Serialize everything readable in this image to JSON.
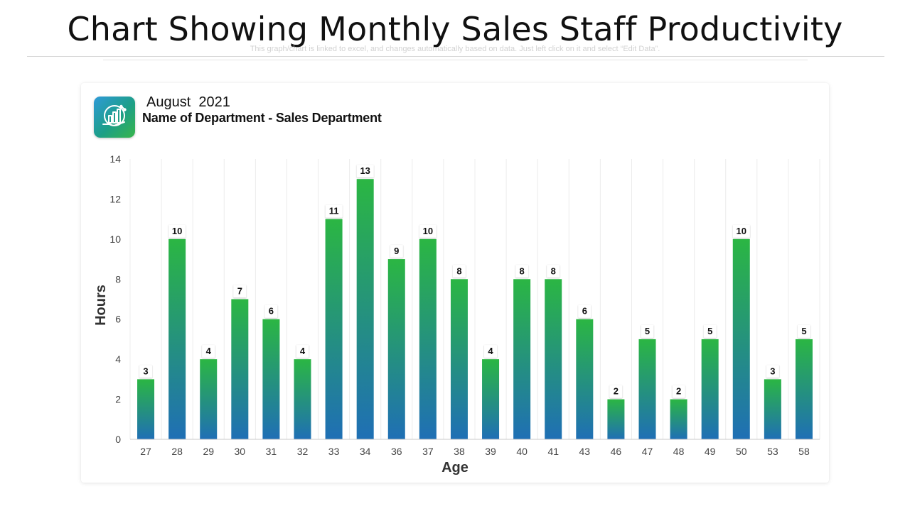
{
  "slide": {
    "title": "Chart Showing Monthly Sales Staff Productivity",
    "subtitle": "This graph/chart is linked to excel, and changes automatically based on data. Just left click on it and select “Edit Data”."
  },
  "header": {
    "icon": "productivity-chart-icon",
    "date": "August  2021",
    "department": "Name of Department - Sales Department"
  },
  "colors": {
    "bar_top": "#2bb643",
    "bar_bottom": "#1f6fb5",
    "icon_gradient_start": "#2f9ad8",
    "icon_gradient_end": "#38b54a"
  },
  "chart_data": {
    "type": "bar",
    "title": "",
    "xlabel": "Age",
    "ylabel": "Hours",
    "ylim": [
      0,
      14
    ],
    "yticks": [
      0,
      2,
      4,
      6,
      8,
      10,
      12,
      14
    ],
    "grid": "vertical",
    "categories": [
      "27",
      "28",
      "29",
      "30",
      "31",
      "32",
      "33",
      "34",
      "36",
      "37",
      "38",
      "39",
      "40",
      "41",
      "43",
      "46",
      "47",
      "48",
      "49",
      "50",
      "53",
      "58"
    ],
    "series": [
      {
        "name": "Hours",
        "values": [
          3,
          10,
          4,
          7,
          6,
          4,
          11,
          13,
          9,
          10,
          8,
          4,
          8,
          8,
          6,
          2,
          5,
          2,
          5,
          10,
          3,
          5
        ]
      }
    ],
    "data_labels": true
  }
}
